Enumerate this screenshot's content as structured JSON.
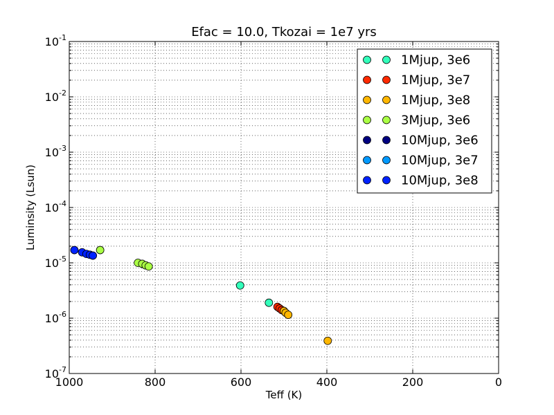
{
  "chart_data": {
    "type": "scatter",
    "title": "Efac = 10.0, Tkozai = 1e7 yrs",
    "xlabel": "Teff (K)",
    "ylabel": "Luminsity (Lsun)",
    "xlim": [
      1000,
      0
    ],
    "ylim": [
      1e-07,
      0.1
    ],
    "yscale": "log",
    "grid": true,
    "legend_position": "top-right",
    "x_ticks": [
      {
        "value": 1000,
        "label": "1000"
      },
      {
        "value": 800,
        "label": "800"
      },
      {
        "value": 600,
        "label": "600"
      },
      {
        "value": 400,
        "label": "400"
      },
      {
        "value": 200,
        "label": "200"
      },
      {
        "value": 0,
        "label": "0"
      }
    ],
    "y_ticks": [
      {
        "value": 1e-07,
        "base": "10",
        "exp": "-7"
      },
      {
        "value": 1e-06,
        "base": "10",
        "exp": "-6"
      },
      {
        "value": 1e-05,
        "base": "10",
        "exp": "-5"
      },
      {
        "value": 0.0001,
        "base": "10",
        "exp": "-4"
      },
      {
        "value": 0.001,
        "base": "10",
        "exp": "-3"
      },
      {
        "value": 0.01,
        "base": "10",
        "exp": "-2"
      },
      {
        "value": 0.1,
        "base": "10",
        "exp": "-1"
      }
    ],
    "series": [
      {
        "name": "1Mjup, 3e6",
        "color": "#33ffbb",
        "points": [
          [
            602,
            3.9e-06
          ],
          [
            535,
            1.9e-06
          ]
        ]
      },
      {
        "name": "1Mjup, 3e7",
        "color": "#ff2a00",
        "points": [
          [
            515,
            1.6e-06
          ],
          [
            510,
            1.5e-06
          ],
          [
            505,
            1.4e-06
          ]
        ]
      },
      {
        "name": "1Mjup, 3e8",
        "color": "#ffb700",
        "points": [
          [
            500,
            1.35e-06
          ],
          [
            496,
            1.25e-06
          ],
          [
            490,
            1.15e-06
          ],
          [
            398,
            3.9e-07
          ]
        ]
      },
      {
        "name": "3Mjup, 3e6",
        "color": "#aaff44",
        "points": [
          [
            928,
            1.7e-05
          ],
          [
            840,
            1e-05
          ],
          [
            830,
            9.6e-06
          ],
          [
            822,
            9e-06
          ],
          [
            815,
            8.6e-06
          ]
        ]
      },
      {
        "name": "10Mjup, 3e6",
        "color": "#000080",
        "points": []
      },
      {
        "name": "10Mjup, 3e7",
        "color": "#0099ff",
        "points": []
      },
      {
        "name": "10Mjup, 3e8",
        "color": "#0022ff",
        "points": [
          [
            988,
            1.7e-05
          ],
          [
            970,
            1.55e-05
          ],
          [
            960,
            1.45e-05
          ],
          [
            952,
            1.4e-05
          ],
          [
            945,
            1.35e-05
          ]
        ]
      }
    ]
  }
}
